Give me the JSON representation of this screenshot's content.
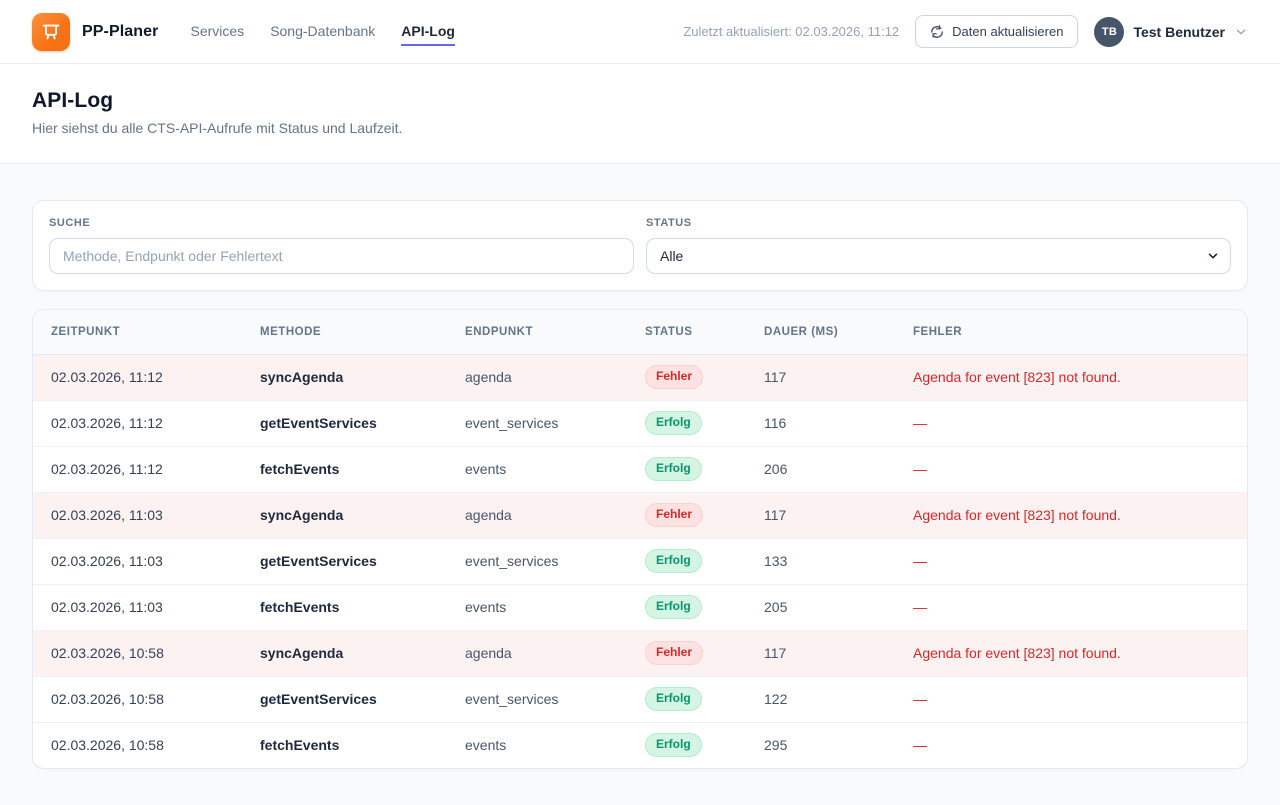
{
  "header": {
    "brand": "PP-Planer",
    "nav": [
      {
        "label": "Services",
        "active": false
      },
      {
        "label": "Song-Datenbank",
        "active": false
      },
      {
        "label": "API-Log",
        "active": true
      }
    ],
    "last_updated": "Zuletzt aktualisiert: 02.03.2026, 11:12",
    "refresh_label": "Daten aktualisieren",
    "user": {
      "initials": "TB",
      "name": "Test Benutzer"
    }
  },
  "page": {
    "title": "API-Log",
    "subtitle": "Hier siehst du alle CTS-API-Aufrufe mit Status und Laufzeit."
  },
  "filters": {
    "search_label": "SUCHE",
    "search_placeholder": "Methode, Endpunkt oder Fehlertext",
    "search_value": "",
    "status_label": "STATUS",
    "status_value": "Alle"
  },
  "table": {
    "columns": [
      "ZEITPUNKT",
      "METHODE",
      "ENDPUNKT",
      "STATUS",
      "DAUER (MS)",
      "FEHLER"
    ],
    "rows": [
      {
        "timestamp": "02.03.2026, 11:12",
        "method": "syncAgenda",
        "endpoint": "agenda",
        "status": "Fehler",
        "status_type": "error",
        "duration": 117,
        "error": "Agenda for event [823] not found."
      },
      {
        "timestamp": "02.03.2026, 11:12",
        "method": "getEventServices",
        "endpoint": "event_services",
        "status": "Erfolg",
        "status_type": "success",
        "duration": 116,
        "error": "—"
      },
      {
        "timestamp": "02.03.2026, 11:12",
        "method": "fetchEvents",
        "endpoint": "events",
        "status": "Erfolg",
        "status_type": "success",
        "duration": 206,
        "error": "—"
      },
      {
        "timestamp": "02.03.2026, 11:03",
        "method": "syncAgenda",
        "endpoint": "agenda",
        "status": "Fehler",
        "status_type": "error",
        "duration": 117,
        "error": "Agenda for event [823] not found."
      },
      {
        "timestamp": "02.03.2026, 11:03",
        "method": "getEventServices",
        "endpoint": "event_services",
        "status": "Erfolg",
        "status_type": "success",
        "duration": 133,
        "error": "—"
      },
      {
        "timestamp": "02.03.2026, 11:03",
        "method": "fetchEvents",
        "endpoint": "events",
        "status": "Erfolg",
        "status_type": "success",
        "duration": 205,
        "error": "—"
      },
      {
        "timestamp": "02.03.2026, 10:58",
        "method": "syncAgenda",
        "endpoint": "agenda",
        "status": "Fehler",
        "status_type": "error",
        "duration": 117,
        "error": "Agenda for event [823] not found."
      },
      {
        "timestamp": "02.03.2026, 10:58",
        "method": "getEventServices",
        "endpoint": "event_services",
        "status": "Erfolg",
        "status_type": "success",
        "duration": 122,
        "error": "—"
      },
      {
        "timestamp": "02.03.2026, 10:58",
        "method": "fetchEvents",
        "endpoint": "events",
        "status": "Erfolg",
        "status_type": "success",
        "duration": 295,
        "error": "—"
      }
    ]
  },
  "icons": {
    "logo": "presentation-board",
    "refresh": "refresh-circular-arrows",
    "user_chevron": "chevron-down",
    "select_chevron": "chevron-down"
  },
  "colors": {
    "brand_orange": "#f97316",
    "accent_underline": "#6366f1",
    "error_text": "#dc2626",
    "error_badge_bg": "#fee2e2",
    "error_row_bg": "#fdf2f2",
    "success_text": "#059669",
    "success_badge_bg": "#d4f5e3",
    "page_bg": "#f8fafc"
  }
}
